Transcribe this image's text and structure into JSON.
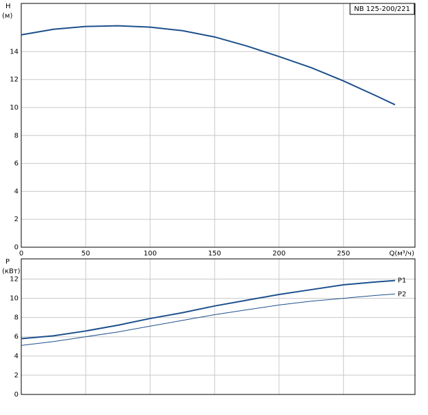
{
  "chart_data": [
    {
      "type": "line",
      "title": "NB 125-200/221",
      "ylabel": "H",
      "yunit": "(м)",
      "xlabel": "Q(м³/ч)",
      "x": [
        0,
        25,
        50,
        75,
        100,
        125,
        150,
        175,
        200,
        225,
        250,
        275,
        290
      ],
      "series": [
        {
          "name": null,
          "color": "#1b4f8c",
          "width": 2,
          "values": [
            15.2,
            15.6,
            15.8,
            15.85,
            15.75,
            15.5,
            15.05,
            14.4,
            13.65,
            12.85,
            11.9,
            10.85,
            10.2
          ]
        }
      ],
      "xlim": [
        0,
        306
      ],
      "xticks": [
        0,
        50,
        100,
        150,
        200,
        250
      ],
      "xtick_labels": true,
      "ylim": [
        0,
        17.45
      ],
      "yticks": [
        0,
        2,
        4,
        6,
        8,
        10,
        12,
        14
      ],
      "grid": true
    },
    {
      "type": "line",
      "ylabel": "P",
      "yunit": "(кВт)",
      "x": [
        0,
        25,
        50,
        75,
        100,
        125,
        150,
        175,
        200,
        225,
        250,
        275,
        290
      ],
      "series": [
        {
          "name": "P1",
          "color": "#1b4f8c",
          "width": 2,
          "values": [
            5.8,
            6.1,
            6.6,
            7.2,
            7.9,
            8.5,
            9.2,
            9.8,
            10.4,
            10.9,
            11.4,
            11.7,
            11.85
          ]
        },
        {
          "name": "P2",
          "color": "#1b4f8c",
          "width": 1,
          "values": [
            5.1,
            5.5,
            6.0,
            6.5,
            7.1,
            7.7,
            8.3,
            8.8,
            9.3,
            9.7,
            10.0,
            10.3,
            10.45
          ]
        }
      ],
      "xlim": [
        0,
        306
      ],
      "xticks": [
        0,
        50,
        100,
        150,
        200,
        250
      ],
      "xtick_labels": false,
      "ylim": [
        0,
        14.1
      ],
      "yticks": [
        0,
        2,
        4,
        6,
        8,
        10,
        12
      ],
      "grid": true
    }
  ]
}
